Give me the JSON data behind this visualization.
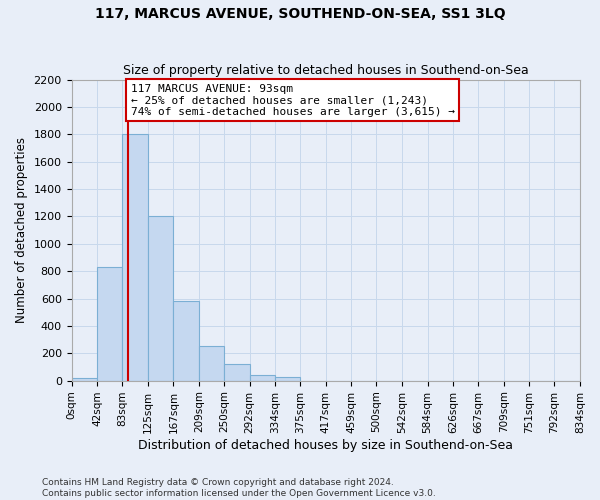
{
  "title": "117, MARCUS AVENUE, SOUTHEND-ON-SEA, SS1 3LQ",
  "subtitle": "Size of property relative to detached houses in Southend-on-Sea",
  "xlabel": "Distribution of detached houses by size in Southend-on-Sea",
  "ylabel": "Number of detached properties",
  "bin_edges": [
    0,
    42,
    83,
    125,
    167,
    209,
    250,
    292,
    334,
    375,
    417,
    459,
    500,
    542,
    584,
    626,
    667,
    709,
    751,
    792,
    834
  ],
  "bar_heights": [
    20,
    830,
    1800,
    1200,
    580,
    255,
    120,
    45,
    30,
    0,
    0,
    0,
    0,
    0,
    0,
    0,
    0,
    0,
    0,
    0
  ],
  "bar_color": "#c5d8f0",
  "bar_edge_color": "#7bafd4",
  "vline_x": 93,
  "vline_color": "#cc0000",
  "annotation_text": "117 MARCUS AVENUE: 93sqm\n← 25% of detached houses are smaller (1,243)\n74% of semi-detached houses are larger (3,615) →",
  "annotation_box_facecolor": "#ffffff",
  "annotation_box_edgecolor": "#cc0000",
  "grid_color": "#c8d8ec",
  "background_color": "#e8eef8",
  "ylim": [
    0,
    2200
  ],
  "yticks": [
    0,
    200,
    400,
    600,
    800,
    1000,
    1200,
    1400,
    1600,
    1800,
    2000,
    2200
  ],
  "tick_labels": [
    "0sqm",
    "42sqm",
    "83sqm",
    "125sqm",
    "167sqm",
    "209sqm",
    "250sqm",
    "292sqm",
    "334sqm",
    "375sqm",
    "417sqm",
    "459sqm",
    "500sqm",
    "542sqm",
    "584sqm",
    "626sqm",
    "667sqm",
    "709sqm",
    "751sqm",
    "792sqm",
    "834sqm"
  ],
  "footer_line1": "Contains HM Land Registry data © Crown copyright and database right 2024.",
  "footer_line2": "Contains public sector information licensed under the Open Government Licence v3.0."
}
